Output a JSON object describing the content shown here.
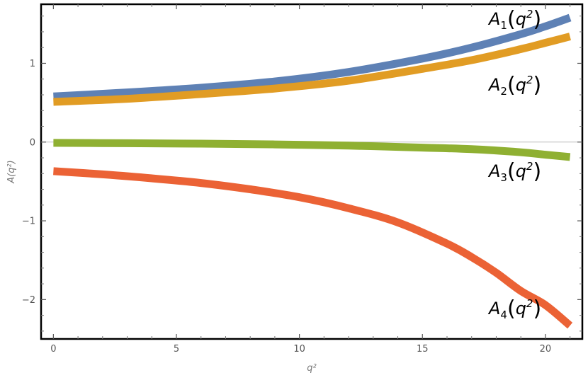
{
  "chart_data": {
    "type": "line",
    "title": "",
    "xlabel": "q²",
    "ylabel": "A(q²)",
    "xlim": [
      -0.5,
      21.5
    ],
    "ylim": [
      -2.5,
      1.75
    ],
    "x_ticks": [
      0,
      5,
      10,
      15,
      20
    ],
    "y_ticks": [
      1,
      0,
      -1,
      -2
    ],
    "x_tick_labels": [
      "0",
      "5",
      "10",
      "15",
      "20"
    ],
    "y_tick_labels": [
      "1",
      "0",
      "−1",
      "−2"
    ],
    "grid": false,
    "frame": true,
    "legend": "curve-labels",
    "series": [
      {
        "name": "A1(q2)",
        "label_base": "A",
        "label_sub": "1",
        "label_arg": "q",
        "label_sup": "2",
        "color": "#5E81B5",
        "x": [
          0,
          3,
          6,
          9,
          12,
          15,
          17,
          19,
          20,
          21
        ],
        "y": [
          0.58,
          0.63,
          0.69,
          0.77,
          0.89,
          1.06,
          1.2,
          1.37,
          1.47,
          1.58
        ]
      },
      {
        "name": "A2(q2)",
        "label_base": "A",
        "label_sub": "2",
        "label_arg": "q",
        "label_sup": "2",
        "color": "#E19C24",
        "x": [
          0,
          3,
          6,
          9,
          12,
          15,
          17,
          19,
          20,
          21
        ],
        "y": [
          0.51,
          0.55,
          0.61,
          0.68,
          0.78,
          0.93,
          1.04,
          1.18,
          1.26,
          1.34
        ]
      },
      {
        "name": "A3(q2)",
        "label_base": "A",
        "label_sub": "3",
        "label_arg": "q",
        "label_sup": "2",
        "color": "#8FB032",
        "x": [
          0,
          3,
          6,
          9,
          12,
          15,
          17,
          19,
          20,
          21
        ],
        "y": [
          -0.01,
          -0.015,
          -0.02,
          -0.03,
          -0.045,
          -0.07,
          -0.09,
          -0.13,
          -0.16,
          -0.19
        ]
      },
      {
        "name": "A4(q2)",
        "label_base": "A",
        "label_sub": "4",
        "label_arg": "q",
        "label_sup": "2",
        "color": "#EB6235",
        "x": [
          0,
          2,
          4,
          6,
          8,
          10,
          12,
          14,
          16,
          17,
          18,
          19,
          20,
          21
        ],
        "y": [
          -0.37,
          -0.41,
          -0.46,
          -0.52,
          -0.6,
          -0.7,
          -0.84,
          -1.02,
          -1.29,
          -1.46,
          -1.66,
          -1.89,
          -2.07,
          -2.33
        ]
      }
    ]
  }
}
